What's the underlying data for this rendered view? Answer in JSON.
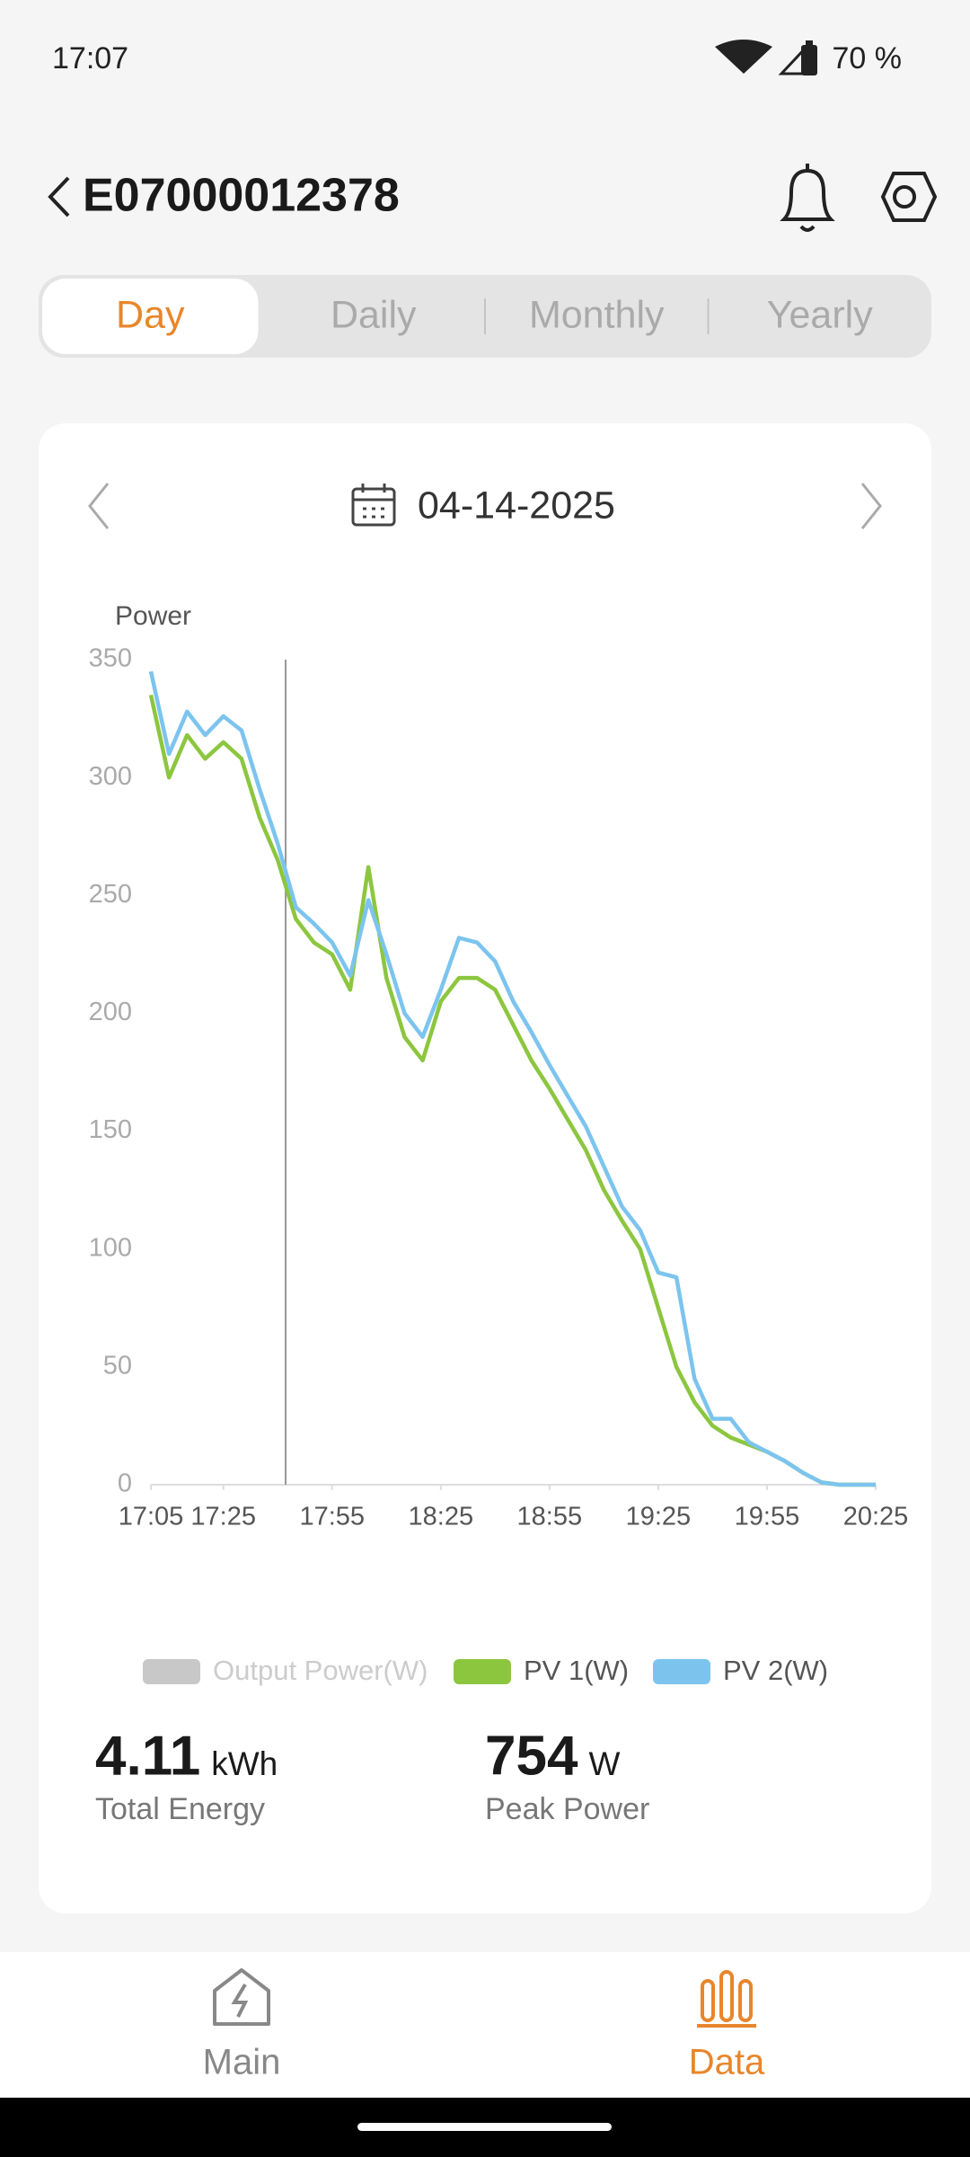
{
  "status_bar": {
    "time": "17:07",
    "battery": "70 %"
  },
  "header": {
    "title": "E07000012378"
  },
  "tabs": [
    "Day",
    "Daily",
    "Monthly",
    "Yearly"
  ],
  "selected_tab": 0,
  "date": "04-14-2025",
  "chart_data": {
    "type": "line",
    "y_label": "Power",
    "x": [
      "17:05",
      "17:10",
      "17:15",
      "17:20",
      "17:25",
      "17:30",
      "17:35",
      "17:40",
      "17:45",
      "17:50",
      "17:55",
      "18:00",
      "18:05",
      "18:10",
      "18:15",
      "18:20",
      "18:25",
      "18:30",
      "18:35",
      "18:40",
      "18:45",
      "18:50",
      "18:55",
      "19:00",
      "19:05",
      "19:10",
      "19:15",
      "19:20",
      "19:25",
      "19:30",
      "19:35",
      "19:40",
      "19:45",
      "19:50",
      "19:55",
      "20:00",
      "20:05",
      "20:10",
      "20:15",
      "20:20",
      "20:25"
    ],
    "xlim": [
      "17:05",
      "20:25"
    ],
    "xticks": [
      "17:05",
      "17:25",
      "17:55",
      "18:25",
      "18:55",
      "19:25",
      "19:55",
      "20:25"
    ],
    "ylim": [
      0,
      350
    ],
    "yticks": [
      0,
      50,
      100,
      150,
      200,
      250,
      300,
      350
    ],
    "series": [
      {
        "name": "Output Power(W)",
        "color": "#c8c8c8",
        "visible": false,
        "values": [
          null,
          null,
          null,
          null,
          null,
          null,
          null,
          null,
          null,
          null,
          null,
          null,
          null,
          null,
          null,
          null,
          null,
          null,
          null,
          null,
          null,
          null,
          null,
          null,
          null,
          null,
          null,
          null,
          null,
          null,
          null,
          null,
          null,
          null,
          null,
          null,
          null,
          null,
          null,
          null,
          null
        ]
      },
      {
        "name": "PV 1(W)",
        "color": "#8cc63f",
        "visible": true,
        "values": [
          335,
          300,
          318,
          308,
          315,
          308,
          283,
          265,
          240,
          230,
          225,
          210,
          262,
          215,
          190,
          180,
          205,
          215,
          215,
          210,
          195,
          180,
          168,
          155,
          142,
          125,
          112,
          100,
          75,
          50,
          35,
          25,
          20,
          17,
          14,
          10,
          5,
          1,
          0,
          0,
          0
        ]
      },
      {
        "name": "PV 2(W)",
        "color": "#7cc4ee",
        "visible": true,
        "values": [
          345,
          310,
          328,
          318,
          326,
          320,
          295,
          272,
          245,
          238,
          230,
          216,
          248,
          225,
          200,
          190,
          210,
          232,
          230,
          222,
          205,
          192,
          178,
          165,
          152,
          135,
          118,
          108,
          90,
          88,
          45,
          28,
          28,
          18,
          14,
          10,
          5,
          1,
          0,
          0,
          0
        ]
      }
    ]
  },
  "stats": [
    {
      "value": 4.11,
      "unit": "kWh",
      "label": "Total Energy"
    },
    {
      "value": 754,
      "unit": "W",
      "label": "Peak Power"
    }
  ],
  "nav": [
    "Main",
    "Data"
  ],
  "active_nav": 1
}
